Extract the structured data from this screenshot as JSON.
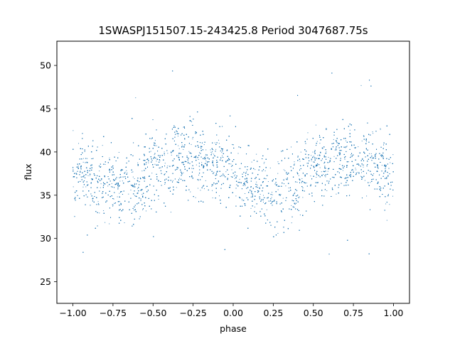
{
  "chart_data": {
    "type": "scatter",
    "title": "1SWASPJ151507.15-243425.8 Period 3047687.75s",
    "xlabel": "phase",
    "ylabel": "flux",
    "xlim": [
      -1.1,
      1.1
    ],
    "ylim": [
      22.5,
      52.8
    ],
    "xticks": [
      -1.0,
      -0.75,
      -0.5,
      -0.25,
      0.0,
      0.25,
      0.5,
      0.75,
      1.0
    ],
    "xtick_labels": [
      "−1.00",
      "−0.75",
      "−0.50",
      "−0.25",
      "0.00",
      "0.25",
      "0.50",
      "0.75",
      "1.00"
    ],
    "yticks": [
      25,
      30,
      35,
      40,
      45,
      50
    ],
    "ytick_labels": [
      "25",
      "30",
      "35",
      "40",
      "45",
      "50"
    ],
    "grid": false,
    "legend": "none",
    "marker_color": "#1f77b4",
    "series": [
      {
        "x": [
          -1.0,
          -0.98,
          -0.96,
          -0.94,
          -0.92,
          -0.9,
          -0.88,
          -0.86,
          -0.84,
          -0.82,
          -0.8,
          -0.78,
          -0.76,
          -0.74,
          -0.72,
          -0.7,
          -0.68,
          -0.66,
          -0.64,
          -0.62,
          -0.6,
          -0.58,
          -0.56,
          -0.54,
          -0.52,
          -0.5,
          -0.48,
          -0.46,
          -0.44,
          -0.42,
          -0.4,
          -0.38,
          -0.36,
          -0.34,
          -0.32,
          -0.3,
          -0.28,
          -0.26,
          -0.24,
          -0.22,
          -0.2,
          -0.18,
          -0.16,
          -0.14,
          -0.12,
          -0.1,
          -0.08,
          -0.06,
          -0.04,
          -0.02,
          0.0,
          0.02,
          0.04,
          0.06,
          0.08,
          0.1,
          0.12,
          0.14,
          0.16,
          0.18,
          0.2,
          0.22,
          0.24,
          0.26,
          0.28,
          0.3,
          0.32,
          0.34,
          0.36,
          0.38,
          0.4,
          0.42,
          0.44,
          0.46,
          0.48,
          0.5,
          0.52,
          0.54,
          0.56,
          0.58,
          0.6,
          0.62,
          0.64,
          0.66,
          0.68,
          0.7,
          0.72,
          0.74,
          0.76,
          0.78,
          0.8,
          0.82,
          0.84,
          0.86,
          0.88,
          0.9,
          0.92,
          0.94,
          0.96,
          0.98,
          1.0
        ],
        "y": [
          36.5,
          37.2,
          38.0,
          38.6,
          38.2,
          37.4,
          36.8,
          36.6,
          36.2,
          35.9,
          35.6,
          35.8,
          36.4,
          36.0,
          35.4,
          35.7,
          36.5,
          37.0,
          36.3,
          35.8,
          35.6,
          36.2,
          37.0,
          37.6,
          38.0,
          38.4,
          38.2,
          38.5,
          38.9,
          38.6,
          38.2,
          38.6,
          39.2,
          39.0,
          38.6,
          38.8,
          39.1,
          39.6,
          39.3,
          38.9,
          38.6,
          39.0,
          39.3,
          38.8,
          38.5,
          38.8,
          39.1,
          38.6,
          38.2,
          37.8,
          37.5,
          37.0,
          36.4,
          36.0,
          36.2,
          36.6,
          36.0,
          35.6,
          35.4,
          35.8,
          36.2,
          36.0,
          35.6,
          35.5,
          35.8,
          35.9,
          36.3,
          36.7,
          36.4,
          36.0,
          35.8,
          36.5,
          37.3,
          37.9,
          38.2,
          38.4,
          38.6,
          38.9,
          38.7,
          38.4,
          38.6,
          38.8,
          39.4,
          39.6,
          39.4,
          39.2,
          39.0,
          39.5,
          39.8,
          39.5,
          39.0,
          38.8,
          39.0,
          39.3,
          39.0,
          38.7,
          38.5,
          38.8,
          38.6,
          38.0,
          37.4
        ],
        "scatter_sd": 2.1
      }
    ]
  }
}
